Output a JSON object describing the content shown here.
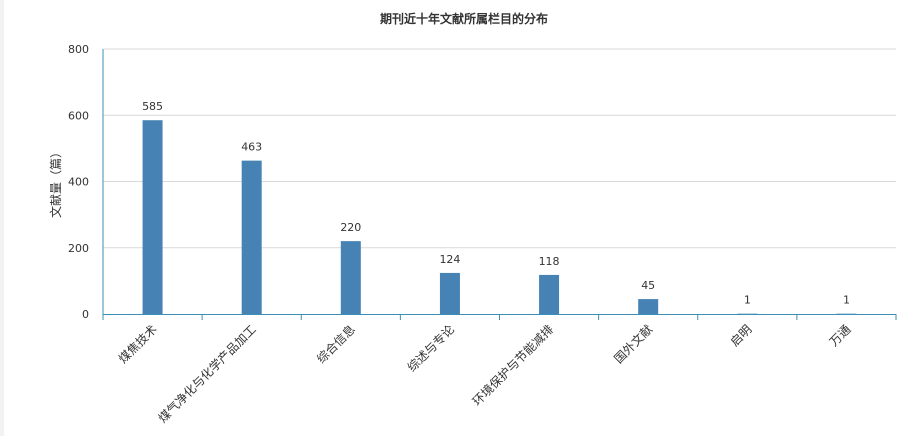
{
  "chart_data": {
    "type": "bar",
    "title": "期刊近十年文献所属栏目的分布",
    "xlabel": "",
    "ylabel": "文献量（篇）",
    "categories": [
      "煤焦技术",
      "煤气净化与化学产品加工",
      "综合信息",
      "综述与专论",
      "环境保护与节能减排",
      "国外文献",
      "启明",
      "万通"
    ],
    "values": [
      585,
      463,
      220,
      124,
      118,
      45,
      1,
      1
    ],
    "ylim": [
      0,
      800
    ],
    "yticks": [
      0,
      200,
      400,
      600,
      800
    ],
    "grid": true,
    "legend": "none",
    "bar_color": "#4682b4",
    "axis_color": "#3b8fb5",
    "grid_color": "#d9d9d9"
  }
}
